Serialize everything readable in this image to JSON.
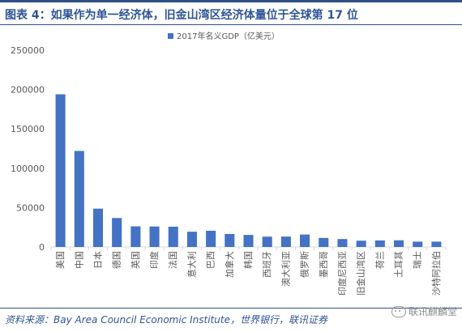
{
  "figure": {
    "title": "图表 4：如果作为单一经济体，旧金山湾区经济体量位于全球第 17 位",
    "source": "资料来源：Bay Area Council Economic Institute，世界银行，联讯证券",
    "watermark": "联讯麒麟堂"
  },
  "colors": {
    "bar": "#4472c4",
    "title": "#2f5597",
    "axis": "#d9d9d9",
    "text": "#595959"
  },
  "chart_data": {
    "type": "bar",
    "title": "",
    "xlabel": "",
    "ylabel": "",
    "ylim": [
      0,
      250000
    ],
    "yticks": [
      0,
      50000,
      100000,
      150000,
      200000,
      250000
    ],
    "grid": false,
    "legend": "top-center",
    "categories": [
      "美国",
      "中国",
      "日本",
      "德国",
      "英国",
      "印度",
      "法国",
      "意大利",
      "巴西",
      "加拿大",
      "韩国",
      "西班牙",
      "澳大利亚",
      "俄罗斯",
      "墨西哥",
      "印度尼西亚",
      "旧金山湾区",
      "荷兰",
      "土耳其",
      "瑞士",
      "沙特阿拉伯"
    ],
    "series": [
      {
        "name": "2017年名义GDP（亿美元）",
        "values": [
          194000,
          122000,
          48700,
          36800,
          26200,
          26000,
          25800,
          19400,
          20600,
          16500,
          15300,
          13100,
          13200,
          15800,
          11500,
          10100,
          8000,
          8300,
          8500,
          6800,
          6800
        ]
      }
    ]
  }
}
